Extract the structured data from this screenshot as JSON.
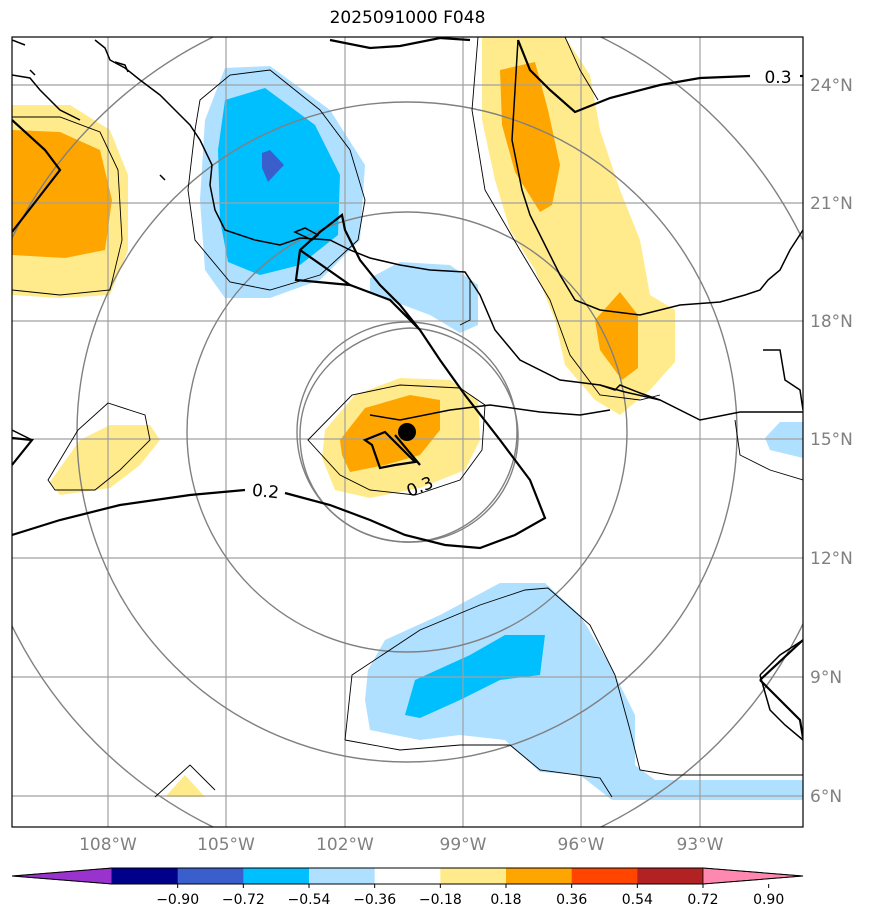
{
  "title": "2025091000 F048",
  "lat_labels": [
    "24°N",
    "21°N",
    "18°N",
    "15°N",
    "12°N",
    "9°N",
    "6°N"
  ],
  "lon_labels": [
    "108°W",
    "105°W",
    "102°W",
    "99°W",
    "96°W",
    "93°W"
  ],
  "contour_labels": [
    "0.3",
    "0.2",
    "0.3"
  ],
  "colorbar": {
    "ticks": [
      "−0.90",
      "−0.72",
      "−0.54",
      "−0.36",
      "−0.18",
      "0.18",
      "0.36",
      "0.54",
      "0.72",
      "0.90"
    ],
    "colors": [
      "#9a32cd",
      "#00008b",
      "#3a5fcd",
      "#00bfff",
      "#b0e0ff",
      "#ffffff",
      "#ffeb8c",
      "#ffa500",
      "#ff4500",
      "#b22222",
      "#ff88b0"
    ]
  },
  "storm_center": {
    "lon": -100.5,
    "lat": 15.2
  },
  "colors": {
    "light_blue": "#b0e0ff",
    "blue": "#00bfff",
    "dark_blue": "#3a5fcd",
    "light_yellow": "#ffeb8c",
    "orange": "#ffa500"
  }
}
